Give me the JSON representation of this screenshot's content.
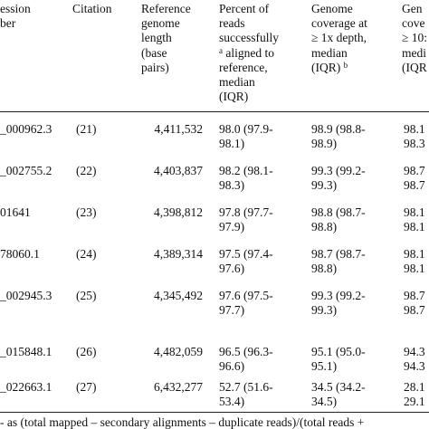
{
  "table": {
    "headers": {
      "accession": [
        "ession",
        "ber"
      ],
      "citation": [
        "Citation"
      ],
      "length": [
        "Reference",
        "genome",
        "length",
        "(base",
        "pairs)"
      ],
      "aligned": [
        "Percent of",
        "reads",
        "successfully",
        "aligned to",
        "reference,",
        "median",
        "(IQR)"
      ],
      "aligned_sup": "a",
      "cov1": [
        "Genome",
        "coverage at",
        "≥ 1x depth,",
        "median",
        "(IQR)"
      ],
      "cov1_sup": "b",
      "cov10": [
        "Gen",
        "cove",
        "≥ 10:",
        "medi",
        "(IQR"
      ]
    },
    "rows": [
      {
        "accession": "_000962.3",
        "citation": "(21)",
        "length": "4,411,532",
        "aligned": [
          "98.0 (97.9-",
          "98.1)"
        ],
        "cov1": [
          "98.9 (98.8-",
          "98.9)"
        ],
        "cov10": [
          "98.1",
          "98.3"
        ]
      },
      {
        "accession": "_002755.2",
        "citation": "(22)",
        "length": "4,403,837",
        "aligned": [
          "98.2 (98.1-",
          "98.3)"
        ],
        "cov1": [
          "99.3 (99.2-",
          "99.3)"
        ],
        "cov10": [
          "98.7",
          "98.7"
        ]
      },
      {
        "accession": "01641",
        "citation": "(23)",
        "length": "4,398,812",
        "aligned": [
          "97.8 (97.7-",
          "97.9)"
        ],
        "cov1": [
          "98.8 (98.7-",
          "98.8)"
        ],
        "cov10": [
          "98.1",
          "98.1"
        ]
      },
      {
        "accession": "78060.1",
        "citation": "(24)",
        "length": "4,389,314",
        "aligned": [
          "97.5 (97.4-",
          "97.6)"
        ],
        "cov1": [
          "98.7 (98.7-",
          "98.8)"
        ],
        "cov10": [
          "98.1",
          "98.1"
        ]
      },
      {
        "accession": "_002945.3",
        "citation": "(25)",
        "length": "4,345,492",
        "aligned": [
          "97.6 (97.5-",
          "97.7)"
        ],
        "cov1": [
          "99.3 (99.2-",
          "99.3)"
        ],
        "cov10": [
          "98.7",
          "98.7"
        ]
      },
      {
        "accession": "_015848.1",
        "citation": "(26)",
        "length": "4,482,059",
        "aligned": [
          "96.5 (96.3-",
          "96.6)"
        ],
        "cov1": [
          "95.1 (95.0-",
          "95.1)"
        ],
        "cov10": [
          "94.3",
          "94.3"
        ]
      },
      {
        "accession": "_022663.1",
        "citation": "(27)",
        "length": "6,432,277",
        "aligned": [
          "52.7 (51.6-",
          "53.4)"
        ],
        "cov1": [
          "34.5 (34.2-",
          "34.5)"
        ],
        "cov10": [
          "28.1",
          "29.1"
        ]
      }
    ],
    "footnote": "- as (total mapped – secondary alignments – duplicate reads)/(total reads +"
  }
}
